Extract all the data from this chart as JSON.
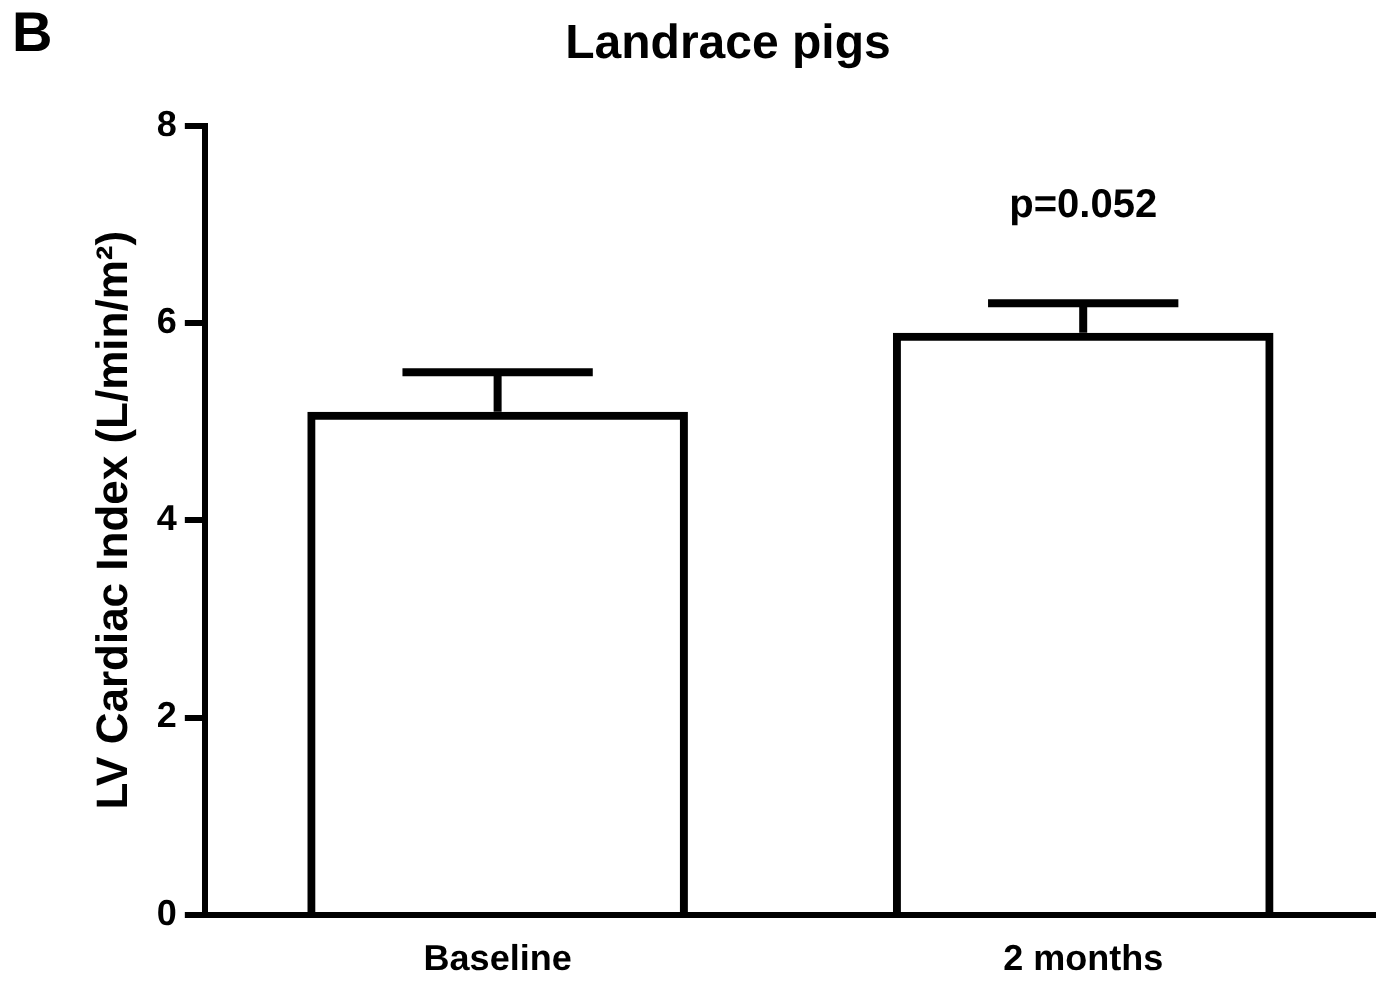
{
  "chart_data": {
    "type": "bar",
    "title": "Landrace pigs",
    "ylabel": "LV Cardiac Index (L/min/m²)",
    "categories": [
      "Baseline",
      "2 months"
    ],
    "series": [
      {
        "color": "#000000",
        "values": [
          5.1,
          5.9
        ],
        "errors": [
          [
            5.1,
            5.5
          ],
          [
            5.9,
            6.2
          ]
        ]
      }
    ],
    "ylim": [
      0,
      8
    ],
    "yticks": [
      0,
      2,
      4,
      6,
      8
    ],
    "grid": false,
    "legend": false,
    "annotations": [
      "B",
      "p=0.052"
    ]
  }
}
